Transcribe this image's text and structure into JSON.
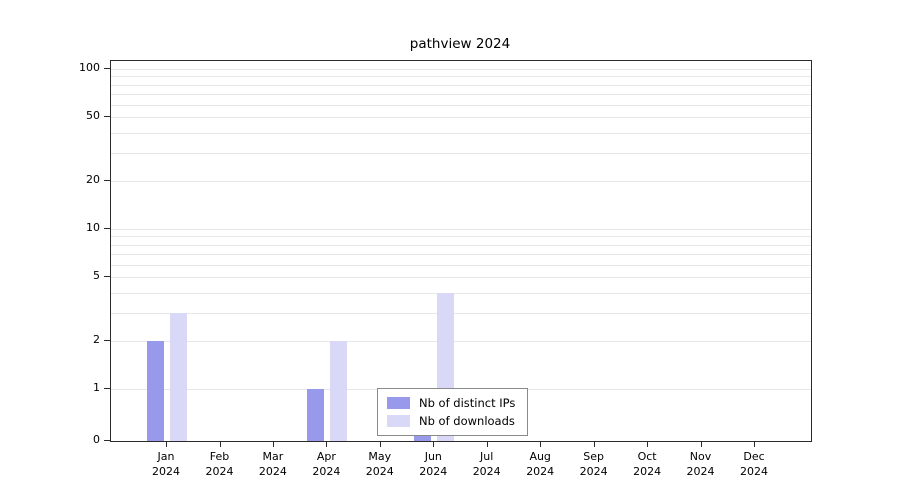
{
  "chart_data": {
    "type": "bar",
    "title": "pathview 2024",
    "categories": [
      "Jan",
      "Feb",
      "Mar",
      "Apr",
      "May",
      "Jun",
      "Jul",
      "Aug",
      "Sep",
      "Oct",
      "Nov",
      "Dec"
    ],
    "year_label": "2024",
    "series": [
      {
        "name": "Nb of distinct IPs",
        "color": "#9999ec",
        "values": [
          2,
          0,
          0,
          1,
          0,
          1,
          0,
          0,
          0,
          0,
          0,
          0
        ]
      },
      {
        "name": "Nb of downloads",
        "color": "#d9d9f7",
        "values": [
          3,
          0,
          0,
          2,
          0,
          4,
          0,
          0,
          0,
          0,
          0,
          0
        ]
      }
    ],
    "xlabel": "",
    "ylabel": "",
    "yticks": [
      0,
      1,
      2,
      5,
      10,
      20,
      50,
      100
    ],
    "yscale": "log",
    "ylim": [
      0,
      100
    ],
    "grid": true,
    "legend_position": "bottom-center"
  }
}
